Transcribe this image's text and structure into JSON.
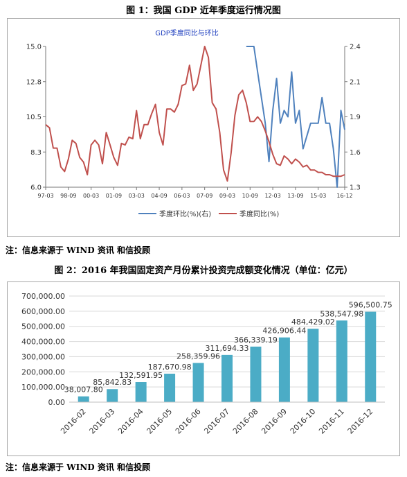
{
  "figure1": {
    "caption": "图 1：我国 GDP 近年季度运行情况图",
    "chart_title": "GDP季度同比与环比",
    "source_note": "注：信息来源于 WIND 资讯   和信投顾"
  },
  "figure2": {
    "caption": "图 2：2016 年我国固定资产月份累计投资完成额变化情况（单位：亿元）",
    "source_note": "注：信息来源于 WIND 资讯   和信投顾"
  },
  "chart_data": [
    {
      "type": "line",
      "title": "GDP季度同比与环比",
      "x_tick_labels": [
        "97-03",
        "98-09",
        "00-03",
        "01-09",
        "03-03",
        "04-09",
        "06-03",
        "07-09",
        "09-03",
        "10-09",
        "12-03",
        "13-09",
        "15-03",
        "16-12"
      ],
      "y_left": {
        "ticks": [
          "6.0",
          "8.3",
          "10.5",
          "12.8",
          "15.0"
        ],
        "range": [
          6.0,
          15.0
        ]
      },
      "y_right": {
        "ticks": [
          "1.3",
          "1.6",
          "1.9",
          "2.1",
          "2.4"
        ],
        "range": [
          1.3,
          2.4
        ]
      },
      "legend_position": "bottom",
      "series": [
        {
          "name": "季度环比(%)(右)",
          "axis": "right",
          "color": "#4f81bd",
          "x": [
            "2010-06",
            "2010-09",
            "2010-12",
            "2011-03",
            "2011-06",
            "2011-09",
            "2011-12",
            "2012-03",
            "2012-06",
            "2012-09",
            "2012-12",
            "2013-03",
            "2013-06",
            "2013-09",
            "2013-12",
            "2014-03",
            "2014-06",
            "2014-09",
            "2014-12",
            "2015-03",
            "2015-06",
            "2015-09",
            "2015-12",
            "2016-03",
            "2016-06",
            "2016-09",
            "2016-12"
          ],
          "values": [
            2.4,
            2.4,
            2.4,
            2.2,
            2.0,
            1.8,
            1.5,
            1.9,
            2.15,
            1.8,
            1.9,
            1.85,
            2.2,
            1.8,
            1.9,
            1.6,
            1.7,
            1.8,
            1.8,
            1.8,
            2.0,
            1.8,
            1.8,
            1.6,
            1.3,
            1.9,
            1.75
          ]
        },
        {
          "name": "季度同比(%)",
          "axis": "left",
          "color": "#c0504d",
          "x": [
            "1997-03",
            "1997-06",
            "1997-09",
            "1997-12",
            "1998-03",
            "1998-06",
            "1998-09",
            "1998-12",
            "1999-03",
            "1999-06",
            "1999-09",
            "1999-12",
            "2000-03",
            "2000-06",
            "2000-09",
            "2000-12",
            "2001-03",
            "2001-06",
            "2001-09",
            "2001-12",
            "2002-03",
            "2002-06",
            "2002-09",
            "2002-12",
            "2003-03",
            "2003-06",
            "2003-09",
            "2003-12",
            "2004-03",
            "2004-06",
            "2004-09",
            "2004-12",
            "2005-03",
            "2005-06",
            "2005-09",
            "2005-12",
            "2006-03",
            "2006-06",
            "2006-09",
            "2006-12",
            "2007-03",
            "2007-06",
            "2007-09",
            "2007-12",
            "2008-03",
            "2008-06",
            "2008-09",
            "2008-12",
            "2009-03",
            "2009-06",
            "2009-09",
            "2009-12",
            "2010-03",
            "2010-06",
            "2010-09",
            "2010-12",
            "2011-03",
            "2011-06",
            "2011-09",
            "2011-12",
            "2012-03",
            "2012-06",
            "2012-09",
            "2012-12",
            "2013-03",
            "2013-06",
            "2013-09",
            "2013-12",
            "2014-03",
            "2014-06",
            "2014-09",
            "2014-12",
            "2015-03",
            "2015-06",
            "2015-09",
            "2015-12",
            "2016-03",
            "2016-06",
            "2016-09",
            "2016-12"
          ],
          "values": [
            10.0,
            9.8,
            8.5,
            8.5,
            7.3,
            7.0,
            7.8,
            9.0,
            8.8,
            7.9,
            7.6,
            6.8,
            8.7,
            9.0,
            8.7,
            7.5,
            9.5,
            8.7,
            7.9,
            7.4,
            8.8,
            8.7,
            9.2,
            9.1,
            10.9,
            9.1,
            10.0,
            10.0,
            10.7,
            11.3,
            9.5,
            8.7,
            11.0,
            11.0,
            10.8,
            11.3,
            12.5,
            12.6,
            13.8,
            12.2,
            12.6,
            13.8,
            15.0,
            14.3,
            11.4,
            11.0,
            9.5,
            7.1,
            6.4,
            8.2,
            10.6,
            11.9,
            12.2,
            11.4,
            10.2,
            10.2,
            10.5,
            10.2,
            9.6,
            8.9,
            8.1,
            7.5,
            7.4,
            8.0,
            7.8,
            7.5,
            7.8,
            7.6,
            7.3,
            7.4,
            7.1,
            7.1,
            6.95,
            6.95,
            6.8,
            6.8,
            6.7,
            6.7,
            6.7,
            6.8
          ]
        }
      ]
    },
    {
      "type": "bar",
      "categories": [
        "2016-02",
        "2016-03",
        "2016-04",
        "2016-05",
        "2016-06",
        "2016-07",
        "2016-08",
        "2016-09",
        "2016-10",
        "2016-11",
        "2016-12"
      ],
      "values": [
        38007.8,
        85842.83,
        132591.95,
        187670.98,
        258359.96,
        311694.33,
        366339.19,
        426906.44,
        484429.02,
        538547.98,
        596500.75
      ],
      "value_labels": [
        "38,007.80",
        "85,842.83",
        "132,591.95",
        "187,670.98",
        "258,359.96",
        "311,694.33",
        "366,339.19",
        "426,906.44",
        "484,429.02",
        "538,547.98",
        "596,500.75"
      ],
      "y_tick_labels": [
        "0.00",
        "100,000.00",
        "200,000.00",
        "300,000.00",
        "400,000.00",
        "500,000.00",
        "600,000.00",
        "700,000.00"
      ],
      "ylim": [
        0,
        700000
      ],
      "grid": true,
      "color": "#4bacc6"
    }
  ]
}
